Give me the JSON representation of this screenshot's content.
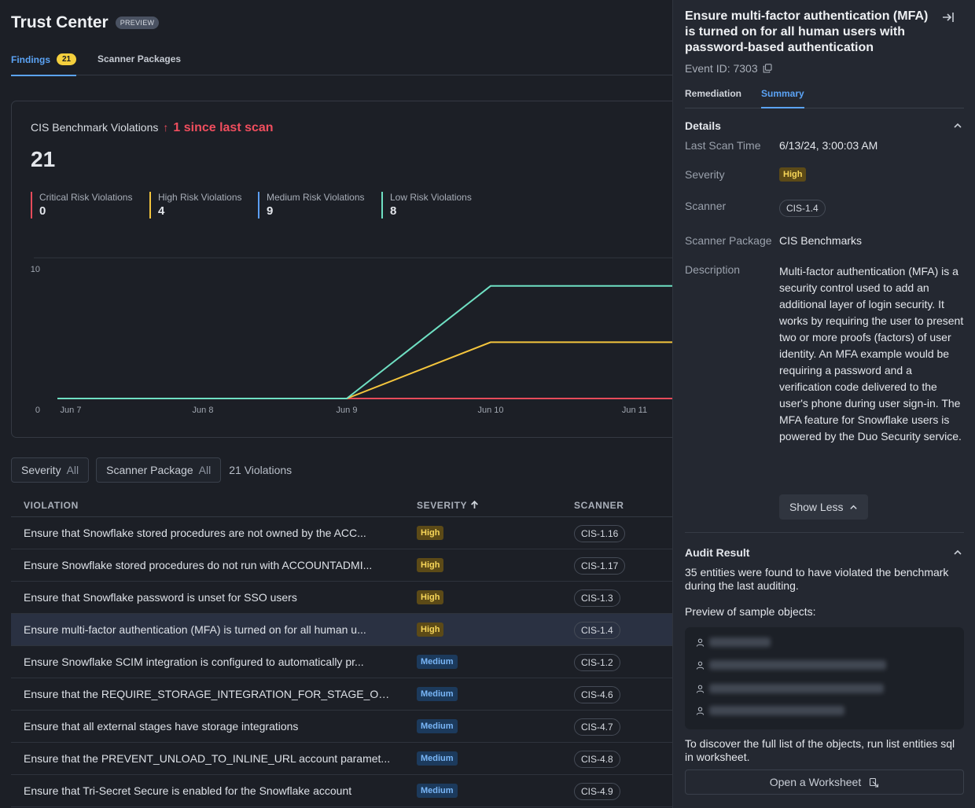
{
  "header": {
    "title": "Trust Center",
    "badge": "PREVIEW"
  },
  "tabs": [
    {
      "label": "Findings",
      "count": "21",
      "active": true
    },
    {
      "label": "Scanner Packages",
      "active": false
    }
  ],
  "summary": {
    "title": "CIS Benchmark Violations",
    "arrow": "↑",
    "since": "1 since last scan",
    "total": "21",
    "risks": [
      {
        "label": "Critical Risk Violations",
        "value": "0",
        "color": "#e64b5a"
      },
      {
        "label": "High Risk Violations",
        "value": "4",
        "color": "#f4c53d"
      },
      {
        "label": "Medium Risk Violations",
        "value": "9",
        "color": "#5b9df5"
      },
      {
        "label": "Low Risk Violations",
        "value": "8",
        "color": "#6fe0c3"
      }
    ]
  },
  "chart_data": {
    "type": "line",
    "x": [
      "Jun 7",
      "Jun 8",
      "Jun 9",
      "Jun 10",
      "Jun 11"
    ],
    "ylim": [
      0,
      10
    ],
    "yticks": [
      "0",
      "10"
    ],
    "series": [
      {
        "values": [
          0,
          0,
          0,
          8,
          8
        ],
        "color": "#6fe0c3"
      },
      {
        "values": [
          0,
          0,
          0,
          4,
          4
        ],
        "color": "#f4c53d"
      },
      {
        "values": [
          0,
          0,
          0,
          0,
          0
        ],
        "color": "#e64b5a"
      }
    ]
  },
  "filters": [
    {
      "label": "Severity",
      "value": "All"
    },
    {
      "label": "Scanner Package",
      "value": "All"
    }
  ],
  "violations_count": "21 Violations",
  "table": {
    "headers": {
      "violation": "VIOLATION",
      "severity": "SEVERITY",
      "scanner": "SCANNER"
    },
    "rows": [
      {
        "violation": "Ensure that Snowflake stored procedures are not owned by the ACC...",
        "severity": "High",
        "scanner": "CIS-1.16"
      },
      {
        "violation": "Ensure Snowflake stored procedures do not run with ACCOUNTADMI...",
        "severity": "High",
        "scanner": "CIS-1.17"
      },
      {
        "violation": "Ensure that Snowflake password is unset for SSO users",
        "severity": "High",
        "scanner": "CIS-1.3"
      },
      {
        "violation": "Ensure multi-factor authentication (MFA) is turned on for all human u...",
        "severity": "High",
        "scanner": "CIS-1.4",
        "selected": true
      },
      {
        "violation": "Ensure Snowflake SCIM integration is configured to automatically pr...",
        "severity": "Medium",
        "scanner": "CIS-1.2"
      },
      {
        "violation": "Ensure that the REQUIRE_STORAGE_INTEGRATION_FOR_STAGE_OPE...",
        "severity": "Medium",
        "scanner": "CIS-4.6"
      },
      {
        "violation": "Ensure that all external stages have storage integrations",
        "severity": "Medium",
        "scanner": "CIS-4.7"
      },
      {
        "violation": "Ensure that the PREVENT_UNLOAD_TO_INLINE_URL account paramet...",
        "severity": "Medium",
        "scanner": "CIS-4.8"
      },
      {
        "violation": "Ensure that Tri-Secret Secure is enabled for the Snowflake account",
        "severity": "Medium",
        "scanner": "CIS-4.9"
      }
    ]
  },
  "panel": {
    "title": "Ensure multi-factor authentication (MFA) is turned on for all human users with password-based authentication",
    "event_id": "Event ID: 7303",
    "tabs": [
      "Remediation",
      "Summary"
    ],
    "details_heading": "Details",
    "details": {
      "last_scan_label": "Last Scan Time",
      "last_scan_value": "6/13/24, 3:00:03 AM",
      "severity_label": "Severity",
      "severity_value": "High",
      "scanner_label": "Scanner",
      "scanner_value": "CIS-1.4",
      "package_label": "Scanner Package",
      "package_value": "CIS Benchmarks",
      "description_label": "Description",
      "description_value": "Multi-factor authentication (MFA) is a security control used to add an additional layer of login security. It works by requiring the user to present two or more proofs (factors) of user identity. An MFA example would be requiring a password and a verification code delivered to the user's phone during user sign-in. The MFA feature for Snowflake users is powered by the Duo Security service."
    },
    "show_less": "Show Less",
    "audit_heading": "Audit Result",
    "audit_text": "35 entities were found to have violated the benchmark during the last auditing.",
    "preview_label": "Preview of sample objects:",
    "discover_text": "To discover the full list of the objects, run list entities sql in worksheet.",
    "worksheet_button": "Open a Worksheet"
  }
}
